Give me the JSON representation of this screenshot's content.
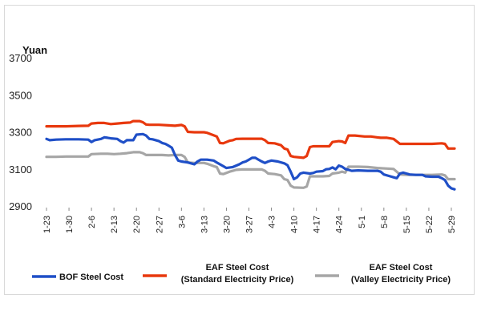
{
  "chart_data": {
    "type": "line",
    "unit_label": "Yuan",
    "ylim": [
      2900,
      3700
    ],
    "yticks": [
      2900,
      3100,
      3300,
      3500,
      3700
    ],
    "grid": false,
    "legend_position": "bottom",
    "x_tick_labels": [
      "1-23",
      "1-30",
      "2-6",
      "2-13",
      "2-20",
      "2-27",
      "3-6",
      "3-13",
      "3-20",
      "3-27",
      "4-3",
      "4-10",
      "4-17",
      "4-24",
      "5-1",
      "5-8",
      "5-15",
      "5-22",
      "5-29"
    ],
    "x_tick_positions": [
      0,
      7,
      14,
      21,
      28,
      35,
      42,
      49,
      56,
      63,
      70,
      77,
      84,
      91,
      98,
      105,
      112,
      119,
      126
    ],
    "series": [
      {
        "name": "BOF Steel Cost",
        "color": "#1f4fc7",
        "points": [
          [
            0,
            3262
          ],
          [
            1,
            3255
          ],
          [
            3,
            3258
          ],
          [
            6,
            3260
          ],
          [
            10,
            3260
          ],
          [
            13,
            3258
          ],
          [
            14,
            3245
          ],
          [
            15,
            3255
          ],
          [
            17,
            3262
          ],
          [
            18,
            3270
          ],
          [
            19,
            3268
          ],
          [
            20,
            3265
          ],
          [
            22,
            3262
          ],
          [
            23,
            3250
          ],
          [
            24,
            3242
          ],
          [
            25,
            3255
          ],
          [
            27,
            3255
          ],
          [
            28,
            3285
          ],
          [
            30,
            3288
          ],
          [
            31,
            3280
          ],
          [
            32,
            3262
          ],
          [
            33,
            3260
          ],
          [
            35,
            3250
          ],
          [
            36,
            3240
          ],
          [
            37,
            3235
          ],
          [
            38,
            3225
          ],
          [
            39,
            3215
          ],
          [
            40,
            3175
          ],
          [
            41,
            3145
          ],
          [
            42,
            3140
          ],
          [
            44,
            3135
          ],
          [
            46,
            3125
          ],
          [
            47,
            3140
          ],
          [
            48,
            3150
          ],
          [
            50,
            3150
          ],
          [
            52,
            3145
          ],
          [
            53,
            3135
          ],
          [
            55,
            3115
          ],
          [
            56,
            3105
          ],
          [
            58,
            3110
          ],
          [
            60,
            3125
          ],
          [
            61,
            3135
          ],
          [
            62,
            3140
          ],
          [
            63,
            3150
          ],
          [
            64,
            3160
          ],
          [
            65,
            3160
          ],
          [
            66,
            3150
          ],
          [
            67,
            3140
          ],
          [
            68,
            3132
          ],
          [
            69,
            3140
          ],
          [
            70,
            3145
          ],
          [
            72,
            3140
          ],
          [
            74,
            3130
          ],
          [
            75,
            3120
          ],
          [
            76,
            3085
          ],
          [
            77,
            3045
          ],
          [
            78,
            3055
          ],
          [
            79,
            3075
          ],
          [
            80,
            3080
          ],
          [
            82,
            3075
          ],
          [
            83,
            3078
          ],
          [
            84,
            3085
          ],
          [
            86,
            3088
          ],
          [
            87,
            3098
          ],
          [
            88,
            3100
          ],
          [
            89,
            3108
          ],
          [
            90,
            3098
          ],
          [
            91,
            3118
          ],
          [
            92,
            3112
          ],
          [
            93,
            3100
          ],
          [
            94,
            3095
          ],
          [
            95,
            3090
          ],
          [
            97,
            3092
          ],
          [
            100,
            3090
          ],
          [
            103,
            3090
          ],
          [
            104,
            3085
          ],
          [
            105,
            3070
          ],
          [
            107,
            3060
          ],
          [
            108,
            3055
          ],
          [
            109,
            3050
          ],
          [
            110,
            3075
          ],
          [
            111,
            3080
          ],
          [
            112,
            3075
          ],
          [
            113,
            3070
          ],
          [
            115,
            3068
          ],
          [
            117,
            3068
          ],
          [
            118,
            3060
          ],
          [
            120,
            3058
          ],
          [
            122,
            3058
          ],
          [
            123,
            3050
          ],
          [
            124,
            3040
          ],
          [
            125,
            3010
          ],
          [
            126,
            2995
          ],
          [
            127,
            2990
          ]
        ]
      },
      {
        "name": "EAF Steel Cost\n(Standard Electricity Price)",
        "color": "#e8380d",
        "points": [
          [
            0,
            3330
          ],
          [
            3,
            3330
          ],
          [
            6,
            3330
          ],
          [
            10,
            3332
          ],
          [
            13,
            3333
          ],
          [
            14,
            3345
          ],
          [
            16,
            3348
          ],
          [
            18,
            3348
          ],
          [
            20,
            3342
          ],
          [
            22,
            3345
          ],
          [
            24,
            3348
          ],
          [
            26,
            3350
          ],
          [
            27,
            3358
          ],
          [
            29,
            3358
          ],
          [
            30,
            3352
          ],
          [
            31,
            3340
          ],
          [
            32,
            3338
          ],
          [
            35,
            3338
          ],
          [
            38,
            3335
          ],
          [
            40,
            3333
          ],
          [
            42,
            3337
          ],
          [
            43,
            3330
          ],
          [
            44,
            3300
          ],
          [
            46,
            3298
          ],
          [
            49,
            3298
          ],
          [
            50,
            3295
          ],
          [
            52,
            3282
          ],
          [
            53,
            3275
          ],
          [
            54,
            3240
          ],
          [
            55,
            3238
          ],
          [
            57,
            3252
          ],
          [
            58,
            3255
          ],
          [
            59,
            3262
          ],
          [
            61,
            3263
          ],
          [
            65,
            3263
          ],
          [
            67,
            3263
          ],
          [
            68,
            3255
          ],
          [
            69,
            3240
          ],
          [
            71,
            3238
          ],
          [
            73,
            3228
          ],
          [
            74,
            3210
          ],
          [
            75,
            3205
          ],
          [
            76,
            3170
          ],
          [
            77,
            3165
          ],
          [
            80,
            3160
          ],
          [
            81,
            3170
          ],
          [
            82,
            3218
          ],
          [
            83,
            3222
          ],
          [
            86,
            3222
          ],
          [
            88,
            3222
          ],
          [
            89,
            3245
          ],
          [
            91,
            3250
          ],
          [
            92,
            3248
          ],
          [
            93,
            3240
          ],
          [
            94,
            3280
          ],
          [
            96,
            3280
          ],
          [
            99,
            3275
          ],
          [
            101,
            3275
          ],
          [
            103,
            3270
          ],
          [
            104,
            3268
          ],
          [
            106,
            3268
          ],
          [
            108,
            3262
          ],
          [
            110,
            3235
          ],
          [
            112,
            3235
          ],
          [
            116,
            3235
          ],
          [
            120,
            3235
          ],
          [
            123,
            3238
          ],
          [
            124,
            3235
          ],
          [
            125,
            3210
          ],
          [
            127,
            3210
          ]
        ]
      },
      {
        "name": "EAF Steel Cost\n(Valley Electricity Price)",
        "color": "#a6a6a6",
        "points": [
          [
            0,
            3165
          ],
          [
            3,
            3165
          ],
          [
            6,
            3167
          ],
          [
            10,
            3167
          ],
          [
            13,
            3167
          ],
          [
            14,
            3180
          ],
          [
            17,
            3182
          ],
          [
            19,
            3182
          ],
          [
            21,
            3180
          ],
          [
            23,
            3182
          ],
          [
            25,
            3185
          ],
          [
            27,
            3190
          ],
          [
            29,
            3190
          ],
          [
            30,
            3185
          ],
          [
            31,
            3175
          ],
          [
            33,
            3175
          ],
          [
            36,
            3175
          ],
          [
            38,
            3173
          ],
          [
            40,
            3175
          ],
          [
            42,
            3175
          ],
          [
            43,
            3165
          ],
          [
            44,
            3135
          ],
          [
            46,
            3132
          ],
          [
            49,
            3132
          ],
          [
            50,
            3128
          ],
          [
            52,
            3115
          ],
          [
            53,
            3110
          ],
          [
            54,
            3075
          ],
          [
            55,
            3072
          ],
          [
            57,
            3085
          ],
          [
            58,
            3090
          ],
          [
            59,
            3095
          ],
          [
            61,
            3097
          ],
          [
            67,
            3097
          ],
          [
            68,
            3090
          ],
          [
            69,
            3075
          ],
          [
            71,
            3072
          ],
          [
            73,
            3065
          ],
          [
            74,
            3045
          ],
          [
            75,
            3040
          ],
          [
            76,
            3010
          ],
          [
            77,
            3000
          ],
          [
            80,
            2998
          ],
          [
            81,
            3005
          ],
          [
            82,
            3060
          ],
          [
            86,
            3060
          ],
          [
            88,
            3062
          ],
          [
            89,
            3075
          ],
          [
            91,
            3080
          ],
          [
            92,
            3085
          ],
          [
            93,
            3080
          ],
          [
            94,
            3112
          ],
          [
            97,
            3112
          ],
          [
            100,
            3110
          ],
          [
            103,
            3105
          ],
          [
            106,
            3102
          ],
          [
            108,
            3100
          ],
          [
            110,
            3070
          ],
          [
            112,
            3068
          ],
          [
            116,
            3068
          ],
          [
            120,
            3068
          ],
          [
            123,
            3070
          ],
          [
            124,
            3065
          ],
          [
            125,
            3045
          ],
          [
            127,
            3045
          ]
        ]
      }
    ]
  }
}
